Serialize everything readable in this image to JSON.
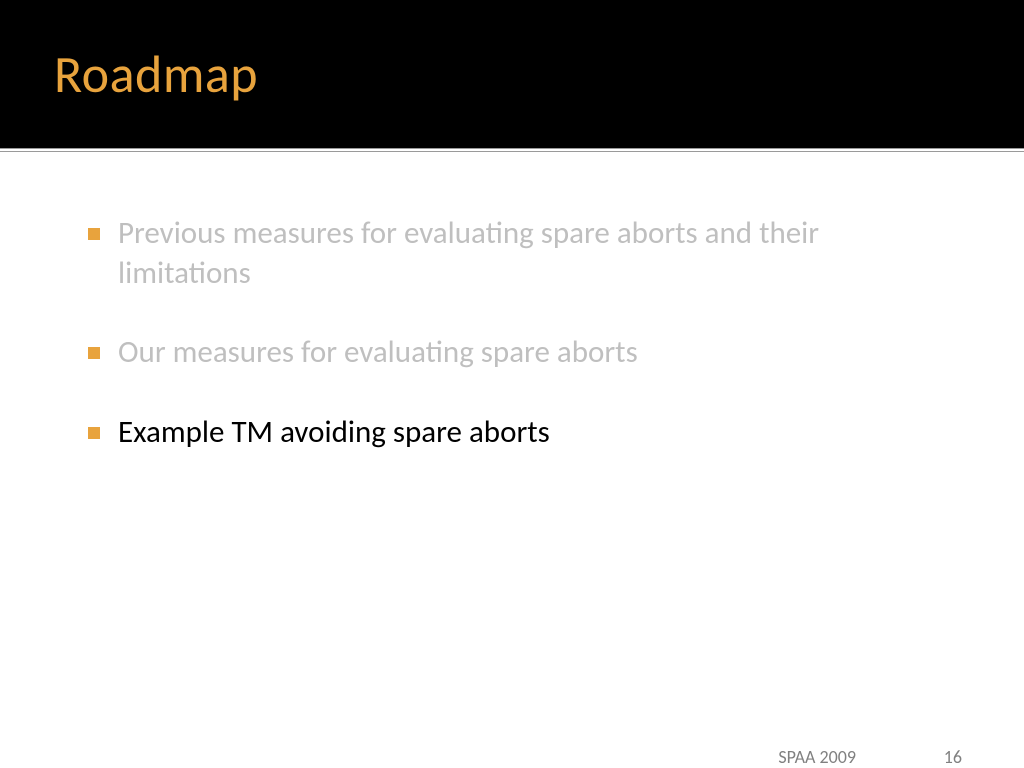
{
  "slide": {
    "title": "Roadmap",
    "title_color": "#e8a33d",
    "title_bg": "#000000",
    "bullets": [
      {
        "text": "Previous measures for evaluating spare aborts and their limitations",
        "dimmed": true
      },
      {
        "text": "Our measures for evaluating spare aborts",
        "dimmed": true
      },
      {
        "text": "Example TM avoiding spare aborts",
        "dimmed": false
      }
    ],
    "bullet_marker_color": "#e8a33d",
    "dimmed_text_color": "#bfbfbf",
    "active_text_color": "#000000",
    "footer": {
      "venue": "SPAA 2009",
      "page": "16",
      "color": "#808080"
    }
  }
}
